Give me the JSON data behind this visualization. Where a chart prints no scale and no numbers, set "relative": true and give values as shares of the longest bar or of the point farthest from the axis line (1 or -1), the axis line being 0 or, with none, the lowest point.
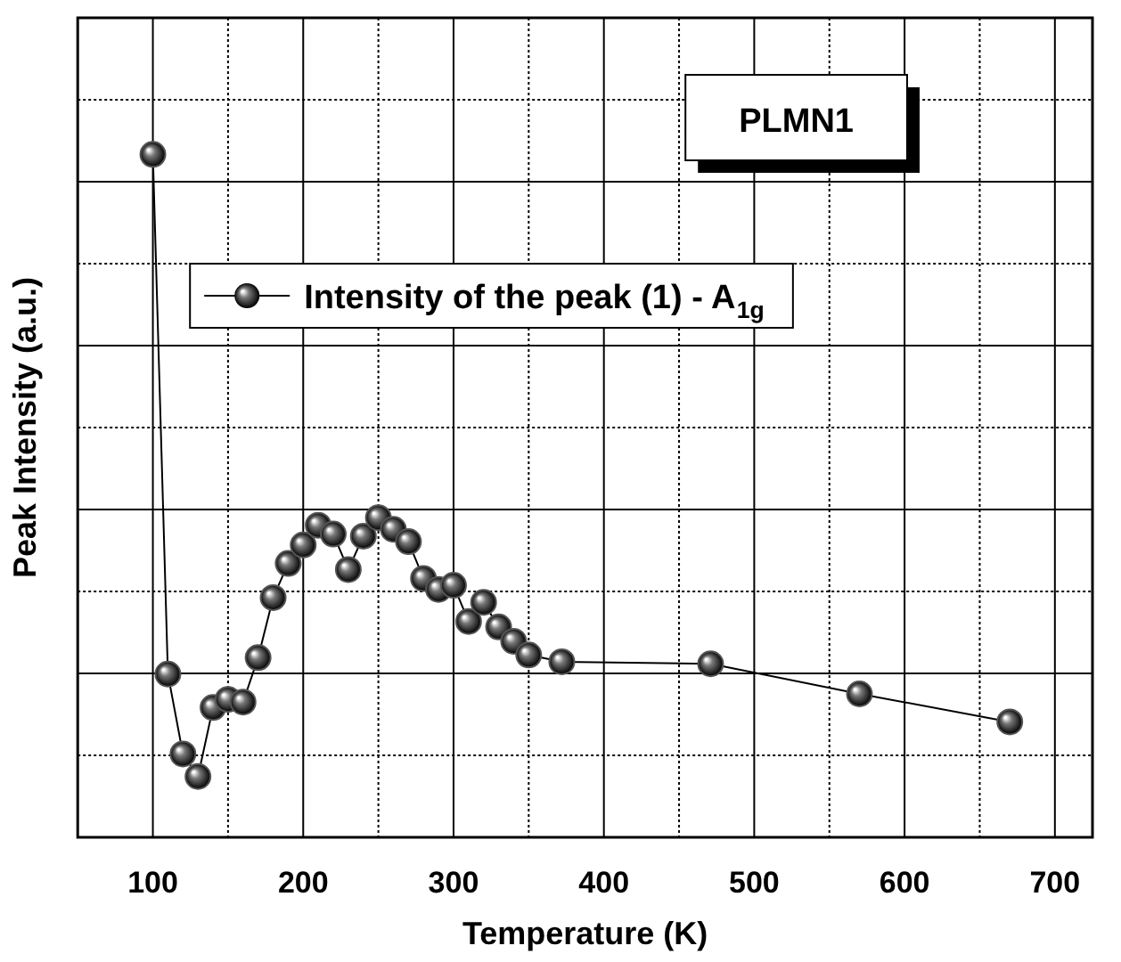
{
  "chart_data": {
    "type": "line",
    "xlabel": "Temperature (K)",
    "ylabel": "Peak Intensity (a.u.)",
    "relative": true,
    "xlim": [
      50,
      725
    ],
    "xticks": [
      100,
      200,
      300,
      400,
      500,
      600,
      700
    ],
    "grid": true,
    "legend": "top left",
    "marker": "circle",
    "line_style": "solid",
    "annotations": [
      "PLMN1"
    ],
    "series": [
      {
        "name": "Intensity of the peak (1) - A$_{1g}$",
        "color": "#000000",
        "x": [
          100,
          110,
          120,
          130,
          140,
          150,
          160,
          170,
          180,
          190,
          200,
          210,
          220,
          230,
          240,
          250,
          260,
          270,
          280,
          290,
          300,
          310,
          320,
          330,
          340,
          350,
          372,
          471,
          570,
          670
        ],
        "values": [
          1,
          0.239,
          0.122,
          0.089,
          0.19,
          0.202,
          0.198,
          0.263,
          0.351,
          0.401,
          0.428,
          0.457,
          0.444,
          0.392,
          0.441,
          0.468,
          0.451,
          0.433,
          0.379,
          0.363,
          0.369,
          0.316,
          0.344,
          0.308,
          0.287,
          0.267,
          0.257,
          0.254,
          0.21,
          0.169
        ]
      }
    ]
  }
}
